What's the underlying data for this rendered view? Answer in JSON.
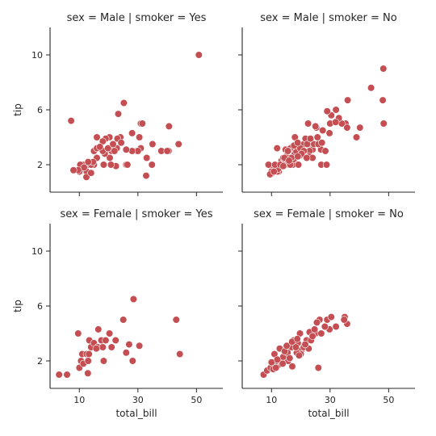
{
  "chart_data": {
    "type": "scatter",
    "layout": "facet-grid-2x2",
    "x_var": "total_bill",
    "y_var": "tip",
    "xlim": [
      0,
      59
    ],
    "ylim": [
      0,
      12
    ],
    "xticks": [
      10,
      30,
      50
    ],
    "yticks": [
      2,
      6,
      10
    ],
    "point_color": "#c44e52",
    "facets": [
      {
        "title": "sex = Male | smoker = Yes",
        "points": [
          [
            38.0,
            3.0
          ],
          [
            11.2,
            2.0
          ],
          [
            20.3,
            4.0
          ],
          [
            18.3,
            2.0
          ],
          [
            15.0,
            2.0
          ],
          [
            40.5,
            3.0
          ],
          [
            15.0,
            3.0
          ],
          [
            31.0,
            3.2
          ],
          [
            22.8,
            3.2
          ],
          [
            24.0,
            4.0
          ],
          [
            26.0,
            2.0
          ],
          [
            25.2,
            6.5
          ],
          [
            34.8,
            2.0
          ],
          [
            16.0,
            3.2
          ],
          [
            21.0,
            3.0
          ],
          [
            22.5,
            1.9
          ],
          [
            7.2,
            5.2
          ],
          [
            40.0,
            3.0
          ],
          [
            33.0,
            2.5
          ],
          [
            35.0,
            3.5
          ],
          [
            31.0,
            5.0
          ],
          [
            10.3,
            2.0
          ],
          [
            28.0,
            4.3
          ],
          [
            13.0,
            2.0
          ],
          [
            19.0,
            3.9
          ],
          [
            16.0,
            2.5
          ],
          [
            14.0,
            2.0
          ],
          [
            14.7,
            2.2
          ],
          [
            20.4,
            2.5
          ],
          [
            20.8,
            2.0
          ],
          [
            18.7,
            2.8
          ],
          [
            12.5,
            1.5
          ],
          [
            29.6,
            3.0
          ],
          [
            30.5,
            4.0
          ],
          [
            10.0,
            1.5
          ],
          [
            30.0,
            3.0
          ],
          [
            32.8,
            1.2
          ],
          [
            23.0,
            3.9
          ],
          [
            18.0,
            3.0
          ],
          [
            11.6,
            1.8
          ],
          [
            50.8,
            10.0
          ],
          [
            43.9,
            3.5
          ],
          [
            19.8,
            3.2
          ],
          [
            24.3,
            3.6
          ],
          [
            12.4,
            1.1
          ],
          [
            26.4,
            2.0
          ],
          [
            23.3,
            5.7
          ],
          [
            40.6,
            4.8
          ],
          [
            9.6,
            1.6
          ],
          [
            8.0,
            1.6
          ],
          [
            16.0,
            4.0
          ],
          [
            18.0,
            3.7
          ],
          [
            14.0,
            1.4
          ],
          [
            17.0,
            3.3
          ],
          [
            21.5,
            3.5
          ],
          [
            28.0,
            3.0
          ],
          [
            13.0,
            2.2
          ],
          [
            31.5,
            5.0
          ],
          [
            26.0,
            3.1
          ],
          [
            22.0,
            3.0
          ]
        ]
      },
      {
        "title": "sex = Male | smoker = No",
        "points": [
          [
            10.3,
            1.7
          ],
          [
            21.0,
            3.5
          ],
          [
            23.7,
            3.3
          ],
          [
            25.3,
            4.7
          ],
          [
            8.8,
            2.0
          ],
          [
            26.9,
            3.1
          ],
          [
            15.0,
            2.0
          ],
          [
            14.8,
            3.1
          ],
          [
            21.6,
            3.9
          ],
          [
            10.3,
            1.4
          ],
          [
            16.3,
            2.0
          ],
          [
            16.0,
            2.0
          ],
          [
            17.0,
            2.2
          ],
          [
            20.0,
            2.7
          ],
          [
            17.8,
            2.9
          ],
          [
            18.4,
            3.0
          ],
          [
            30.4,
            5.6
          ],
          [
            15.0,
            2.2
          ],
          [
            25.0,
            4.8
          ],
          [
            35.3,
            5.0
          ],
          [
            24.0,
            3.1
          ],
          [
            20.6,
            3.0
          ],
          [
            18.1,
            2.1
          ],
          [
            48.3,
            5.0
          ],
          [
            17.3,
            2.0
          ],
          [
            24.5,
            3.5
          ],
          [
            12.7,
            2.0
          ],
          [
            17.0,
            3.3
          ],
          [
            23.0,
            3.0
          ],
          [
            12.5,
            1.5
          ],
          [
            29.0,
            5.9
          ],
          [
            35.8,
            4.7
          ],
          [
            40.2,
            4.7
          ],
          [
            39.0,
            4.0
          ],
          [
            44.0,
            7.6
          ],
          [
            48.2,
            9.0
          ],
          [
            16.4,
            2.0
          ],
          [
            20.6,
            3.0
          ],
          [
            15.0,
            2.6
          ],
          [
            32.0,
            6.0
          ],
          [
            34.0,
            5.0
          ],
          [
            30.0,
            5.0
          ],
          [
            10.0,
            1.5
          ],
          [
            13.4,
            2.3
          ],
          [
            16.5,
            3.2
          ],
          [
            17.5,
            2.4
          ],
          [
            19.8,
            3.2
          ],
          [
            22.2,
            3.5
          ],
          [
            22.8,
            2.6
          ],
          [
            27.0,
            2.0
          ],
          [
            28.4,
            3.0
          ],
          [
            9.0,
            2.0
          ],
          [
            12.0,
            1.5
          ],
          [
            14.0,
            2.5
          ],
          [
            18.0,
            4.0
          ],
          [
            21.0,
            3.0
          ],
          [
            24.0,
            2.5
          ],
          [
            26.0,
            3.5
          ],
          [
            33.0,
            5.4
          ],
          [
            14.4,
            2.5
          ],
          [
            15.8,
            3.0
          ],
          [
            12.3,
            1.7
          ],
          [
            11.2,
            2.0
          ],
          [
            19.2,
            2.0
          ],
          [
            16.8,
            2.5
          ],
          [
            13.8,
            2.0
          ],
          [
            15.6,
            3.0
          ],
          [
            17.7,
            3.4
          ],
          [
            18.9,
            3.6
          ],
          [
            20.3,
            2.8
          ],
          [
            23.3,
            3.9
          ],
          [
            25.7,
            4.0
          ],
          [
            29.8,
            4.3
          ],
          [
            31.9,
            5.1
          ],
          [
            27.2,
            3.6
          ],
          [
            9.5,
            1.3
          ],
          [
            10.8,
            1.5
          ],
          [
            13.0,
            2.0
          ],
          [
            14.0,
            1.9
          ],
          [
            16.0,
            2.3
          ],
          [
            19.0,
            2.6
          ],
          [
            22.0,
            2.5
          ],
          [
            22.5,
            5.0
          ],
          [
            27.5,
            4.5
          ],
          [
            36.0,
            6.7
          ],
          [
            48.0,
            6.7
          ],
          [
            11.9,
            3.2
          ],
          [
            28.8,
            2.0
          ]
        ]
      },
      {
        "title": "sex = Female | smoker = Yes",
        "points": [
          [
            3.1,
            1.0
          ],
          [
            5.8,
            1.0
          ],
          [
            10.0,
            1.5
          ],
          [
            10.6,
            2.0
          ],
          [
            11.0,
            2.5
          ],
          [
            12.5,
            2.5
          ],
          [
            12.9,
            1.1
          ],
          [
            13.4,
            3.5
          ],
          [
            14.0,
            3.0
          ],
          [
            15.0,
            3.3
          ],
          [
            16.3,
            3.0
          ],
          [
            16.5,
            4.3
          ],
          [
            17.5,
            3.5
          ],
          [
            18.0,
            3.0
          ],
          [
            19.0,
            3.5
          ],
          [
            20.3,
            4.0
          ],
          [
            21.0,
            3.0
          ],
          [
            22.4,
            3.5
          ],
          [
            25.0,
            5.0
          ],
          [
            27.0,
            3.2
          ],
          [
            28.2,
            2.0
          ],
          [
            28.5,
            6.5
          ],
          [
            30.5,
            3.1
          ],
          [
            43.1,
            5.0
          ],
          [
            44.3,
            2.5
          ],
          [
            9.6,
            4.0
          ],
          [
            11.4,
            1.8
          ],
          [
            13.3,
            2.5
          ],
          [
            15.8,
            2.9
          ],
          [
            18.3,
            2.0
          ],
          [
            13.0,
            2.0
          ],
          [
            26.0,
            2.6
          ]
        ]
      },
      {
        "title": "sex = Female | smoker = No",
        "points": [
          [
            7.3,
            1.0
          ],
          [
            8.5,
            1.3
          ],
          [
            10.3,
            1.6
          ],
          [
            11.0,
            2.5
          ],
          [
            12.3,
            1.7
          ],
          [
            12.9,
            2.0
          ],
          [
            13.4,
            2.0
          ],
          [
            14.8,
            2.5
          ],
          [
            15.0,
            3.0
          ],
          [
            16.0,
            3.0
          ],
          [
            17.5,
            3.5
          ],
          [
            18.0,
            3.0
          ],
          [
            19.0,
            3.3
          ],
          [
            20.3,
            2.8
          ],
          [
            22.0,
            3.5
          ],
          [
            25.0,
            4.0
          ],
          [
            26.4,
            5.0
          ],
          [
            29.0,
            5.0
          ],
          [
            30.4,
            5.2
          ],
          [
            35.0,
            5.2
          ],
          [
            35.8,
            4.7
          ],
          [
            26.0,
            1.5
          ],
          [
            20.0,
            2.5
          ],
          [
            14.2,
            2.0
          ],
          [
            15.7,
            2.0
          ],
          [
            18.6,
            2.6
          ],
          [
            12.8,
            2.9
          ],
          [
            11.9,
            2.0
          ],
          [
            16.5,
            3.0
          ],
          [
            17.9,
            3.0
          ],
          [
            23.0,
            4.1
          ],
          [
            16.9,
            3.0
          ],
          [
            19.7,
            4.0
          ],
          [
            24.7,
            4.3
          ],
          [
            9.7,
            1.5
          ],
          [
            10.6,
            1.4
          ],
          [
            13.0,
            2.0
          ],
          [
            14.0,
            2.3
          ],
          [
            15.5,
            2.6
          ],
          [
            18.3,
            3.0
          ],
          [
            21.0,
            3.0
          ],
          [
            23.5,
            3.5
          ],
          [
            17.1,
            1.6
          ],
          [
            11.5,
            1.5
          ],
          [
            13.8,
            1.8
          ],
          [
            16.2,
            2.2
          ],
          [
            19.4,
            2.4
          ],
          [
            22.7,
            2.9
          ],
          [
            27.0,
            4.0
          ],
          [
            29.8,
            4.3
          ],
          [
            32.0,
            4.5
          ],
          [
            10.0,
            1.9
          ],
          [
            12.0,
            2.1
          ],
          [
            14.5,
            2.7
          ],
          [
            15.2,
            3.1
          ],
          [
            17.0,
            3.4
          ],
          [
            18.8,
            3.6
          ],
          [
            21.5,
            3.2
          ],
          [
            24.0,
            3.8
          ],
          [
            25.5,
            4.8
          ],
          [
            28.2,
            4.5
          ],
          [
            34.8,
            5.0
          ]
        ]
      }
    ],
    "xlabel": "total_bill",
    "ylabel": "tip",
    "grid": false
  }
}
